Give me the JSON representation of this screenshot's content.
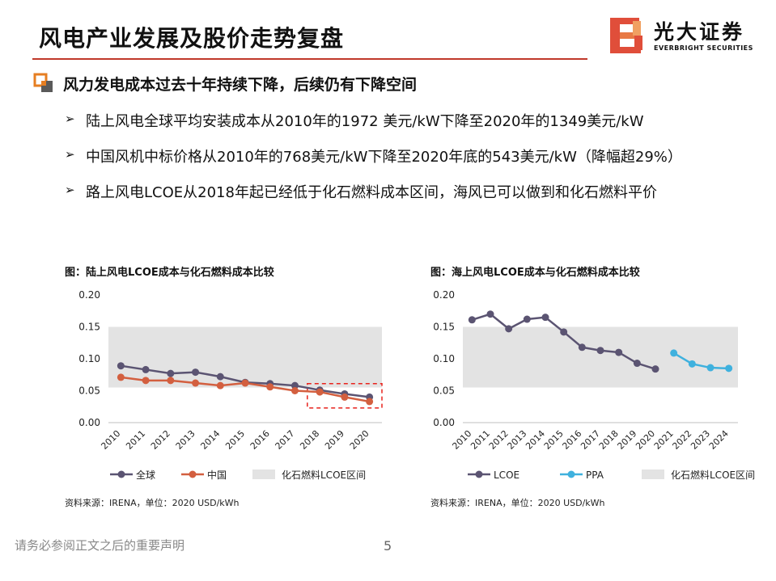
{
  "header": {
    "title": "风电产业发展及股价走势复盘",
    "logo_cn": "光大证券",
    "logo_en": "EVERBRIGHT SECURITIES"
  },
  "section": {
    "heading": "风力发电成本过去十年持续下降，后续仍有下降空间"
  },
  "bullets": [
    "陆上风电全球平均安装成本从2010年的1972 美元/kW下降至2020年的1349美元/kW",
    "中国风机中标价格从2010年的768美元/kW下降至2020年底的543美元/kW（降幅超29%）",
    "路上风电LCOE从2018年起已经低于化石燃料成本区间，海风已可以做到和化石燃料平价"
  ],
  "bullet_marker": "➢",
  "footer": {
    "disclaimer": "请务必参阅正文之后的重要声明",
    "page": "5"
  },
  "colors": {
    "accent_red": "#c0392b",
    "series_global": "#5b5472",
    "series_china": "#d35f3f",
    "series_lcoe": "#5b5472",
    "series_ppa": "#3fb1de",
    "fossil_band": "#e3e3e3",
    "highlight_box": "#e8231d"
  },
  "chart_data": [
    {
      "type": "line",
      "title": "图：陆上风电LCOE成本与化石燃料成本比较",
      "source": "资料来源：IRENA，单位：2020 USD/kWh",
      "categories": [
        "2010",
        "2011",
        "2012",
        "2013",
        "2014",
        "2015",
        "2016",
        "2017",
        "2018",
        "2019",
        "2020"
      ],
      "yticks": [
        "0.00",
        "0.05",
        "0.10",
        "0.15",
        "0.20"
      ],
      "ylim": [
        0,
        0.2
      ],
      "band": {
        "name": "化石燃料LCOE区间",
        "from": 0.055,
        "to": 0.15
      },
      "highlight_categories": [
        "2018",
        "2020"
      ],
      "series": [
        {
          "name": "全球",
          "values": [
            0.089,
            0.083,
            0.077,
            0.079,
            0.072,
            0.063,
            0.061,
            0.058,
            0.051,
            0.045,
            0.04
          ]
        },
        {
          "name": "中国",
          "values": [
            0.071,
            0.066,
            0.066,
            0.062,
            0.058,
            0.062,
            0.056,
            0.05,
            0.048,
            0.04,
            0.033
          ]
        }
      ],
      "legend_position": "bottom"
    },
    {
      "type": "line",
      "title": "图：海上风电LCOE成本与化石燃料成本比较",
      "source": "资料来源：IRENA，单位：2020 USD/kWh",
      "categories": [
        "2010",
        "2011",
        "2012",
        "2013",
        "2014",
        "2015",
        "2016",
        "2017",
        "2018",
        "2019",
        "2020",
        "2021",
        "2022",
        "2023",
        "2024"
      ],
      "yticks": [
        "0.00",
        "0.05",
        "0.10",
        "0.15",
        "0.20"
      ],
      "ylim": [
        0,
        0.2
      ],
      "band": {
        "name": "化石燃料LCOE区间",
        "from": 0.055,
        "to": 0.15
      },
      "series": [
        {
          "name": "LCOE",
          "values": [
            0.161,
            0.17,
            0.147,
            0.162,
            0.165,
            0.142,
            0.118,
            0.113,
            0.11,
            0.093,
            0.084,
            null,
            null,
            null,
            null
          ]
        },
        {
          "name": "PPA",
          "values": [
            null,
            null,
            null,
            null,
            null,
            null,
            null,
            null,
            null,
            null,
            null,
            0.109,
            0.092,
            0.086,
            0.085
          ]
        }
      ],
      "legend_position": "bottom"
    }
  ]
}
